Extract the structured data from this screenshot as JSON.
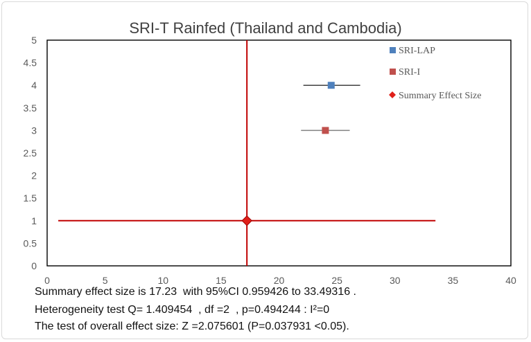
{
  "chart_data": {
    "type": "scatter",
    "title": "SRI-T Rainfed (Thailand and Cambodia)",
    "xlabel": "",
    "ylabel": "",
    "xlim": [
      0,
      40
    ],
    "ylim": [
      0,
      5
    ],
    "x_ticks": [
      "0",
      "5",
      "10",
      "15",
      "20",
      "25",
      "30",
      "35",
      "40"
    ],
    "y_ticks": [
      "0",
      "0.5",
      "1",
      "1.5",
      "2",
      "2.5",
      "3",
      "3.5",
      "4",
      "4.5",
      "5"
    ],
    "legend_position": "top-right",
    "series": [
      {
        "name": "SRI-LAP",
        "marker": "square",
        "color": "#4f81bd",
        "errbar_color": "#404040",
        "x": 24.5,
        "y": 4,
        "ci": [
          22.1,
          27.0
        ]
      },
      {
        "name": "SRI-I",
        "marker": "square",
        "color": "#c0504d",
        "errbar_color": "#808080",
        "x": 24.0,
        "y": 3,
        "ci": [
          21.9,
          26.1
        ]
      },
      {
        "name": "Summary Effect Size",
        "marker": "diamond",
        "color": "#e0201a",
        "errbar_color": "#c00000",
        "x": 17.23,
        "y": 1,
        "ci": [
          0.959426,
          33.49316
        ]
      }
    ],
    "reference_line": {
      "x": 17.23,
      "color": "#c00000"
    }
  },
  "stats": {
    "line1": "Summary effect size is 17.23  with 95%CI 0.959426 to 33.49316 .",
    "line2": "Heterogeneity test Q= 1.409454  , df =2  , p=0.494244 : I²=0",
    "line3": "The test of overall effect size: Z =2.075601 (P=0.037931 <0.05)."
  }
}
